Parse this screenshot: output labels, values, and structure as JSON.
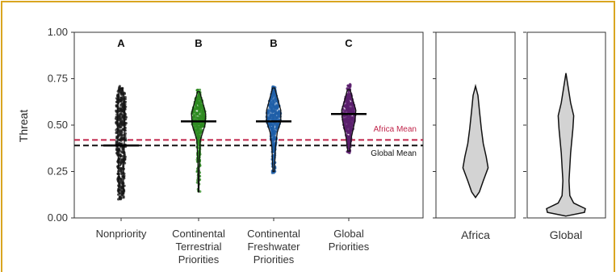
{
  "frame_color": "#d9a520",
  "chart_data": [
    {
      "type": "scatter",
      "subtype": "jitter-violin",
      "ylabel": "Threat",
      "ylim": [
        0,
        1
      ],
      "yticks": [
        {
          "value": 0.0,
          "label": "0.00"
        },
        {
          "value": 0.25,
          "label": "0.25"
        },
        {
          "value": 0.5,
          "label": "0.50"
        },
        {
          "value": 0.75,
          "label": "0.75"
        },
        {
          "value": 1.0,
          "label": "1.00"
        }
      ],
      "categories": [
        {
          "label": [
            "Nonpriority"
          ],
          "letter": "A",
          "color": "#1a1a1a",
          "ymin": 0.1,
          "ymax": 0.71,
          "mean": 0.39,
          "violin": [
            [
              0.13,
              0.06
            ],
            [
              0.25,
              0.07
            ],
            [
              0.4,
              0.09
            ],
            [
              0.55,
              0.1
            ],
            [
              0.66,
              0.08
            ],
            [
              0.7,
              0.04
            ]
          ]
        },
        {
          "label": [
            "Continental",
            "Terrestrial",
            "Priorities"
          ],
          "letter": "B",
          "color": "#2e8b20",
          "ymin": 0.13,
          "ymax": 0.69,
          "mean": 0.52,
          "violin": [
            [
              0.14,
              0.01
            ],
            [
              0.3,
              0.02
            ],
            [
              0.42,
              0.05
            ],
            [
              0.5,
              0.18
            ],
            [
              0.56,
              0.2
            ],
            [
              0.62,
              0.12
            ],
            [
              0.68,
              0.03
            ]
          ]
        },
        {
          "label": [
            "Continental",
            "Freshwater",
            "Priorities"
          ],
          "letter": "B",
          "color": "#1f5fa8",
          "ymin": 0.24,
          "ymax": 0.71,
          "mean": 0.52,
          "violin": [
            [
              0.25,
              0.02
            ],
            [
              0.38,
              0.05
            ],
            [
              0.46,
              0.1
            ],
            [
              0.52,
              0.2
            ],
            [
              0.58,
              0.2
            ],
            [
              0.65,
              0.1
            ],
            [
              0.7,
              0.03
            ]
          ]
        },
        {
          "label": [
            "Global",
            "Priorities"
          ],
          "letter": "C",
          "color": "#5b1f6e",
          "ymin": 0.35,
          "ymax": 0.72,
          "mean": 0.56,
          "violin": [
            [
              0.36,
              0.03
            ],
            [
              0.44,
              0.08
            ],
            [
              0.52,
              0.17
            ],
            [
              0.58,
              0.2
            ],
            [
              0.63,
              0.12
            ],
            [
              0.69,
              0.04
            ]
          ]
        }
      ],
      "reference_lines": [
        {
          "label": "Africa Mean",
          "value": 0.42,
          "color": "#c0244a"
        },
        {
          "label": "Global Mean",
          "value": 0.39,
          "color": "#111111"
        }
      ]
    },
    {
      "type": "violin",
      "xlabel": "Africa",
      "ylim": [
        0,
        1
      ],
      "fill": "#d3d3d3",
      "profile": [
        [
          0.11,
          0.0
        ],
        [
          0.14,
          0.08
        ],
        [
          0.2,
          0.16
        ],
        [
          0.27,
          0.26
        ],
        [
          0.33,
          0.22
        ],
        [
          0.4,
          0.16
        ],
        [
          0.48,
          0.12
        ],
        [
          0.58,
          0.08
        ],
        [
          0.66,
          0.05
        ],
        [
          0.71,
          0.0
        ]
      ]
    },
    {
      "type": "violin",
      "xlabel": "Global",
      "ylim": [
        0,
        1
      ],
      "fill": "#d3d3d3",
      "profile": [
        [
          0.01,
          0.0
        ],
        [
          0.03,
          0.48
        ],
        [
          0.05,
          0.5
        ],
        [
          0.08,
          0.2
        ],
        [
          0.12,
          0.1
        ],
        [
          0.2,
          0.08
        ],
        [
          0.35,
          0.12
        ],
        [
          0.48,
          0.18
        ],
        [
          0.55,
          0.2
        ],
        [
          0.62,
          0.12
        ],
        [
          0.7,
          0.06
        ],
        [
          0.78,
          0.0
        ]
      ]
    }
  ]
}
